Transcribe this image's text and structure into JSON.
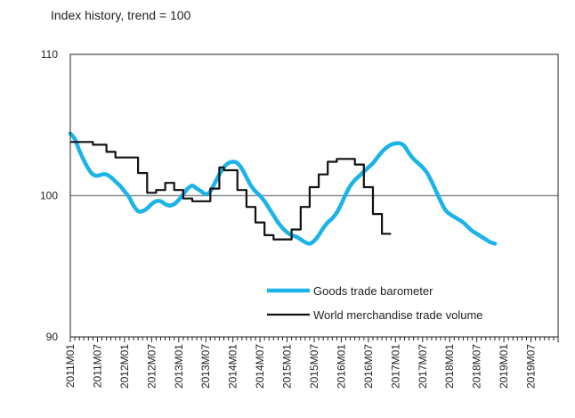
{
  "chart_data": {
    "type": "line",
    "title": "Index history, trend = 100",
    "xlabel": "",
    "ylabel": "",
    "ylim": [
      90,
      110
    ],
    "yticks": [
      90,
      100,
      110
    ],
    "reference_line": 100,
    "grid": false,
    "legend_position": "bottom-right",
    "x_start": "2011M01",
    "x_end": "2019M12",
    "xtick_labels": [
      "2011M01",
      "2011M07",
      "2012M01",
      "2012M07",
      "2013M01",
      "2013M07",
      "2014M01",
      "2014M07",
      "2015M01",
      "2015M07",
      "2016M01",
      "2016M07",
      "2017M01",
      "2017M07",
      "2018M01",
      "2018M07",
      "2019M01",
      "2019M07"
    ],
    "series": [
      {
        "name": "Goods trade barometer",
        "color": "#1bb3e8",
        "style": "smooth",
        "points": [
          [
            "2011M01",
            104.4
          ],
          [
            "2011M02",
            104.0
          ],
          [
            "2011M03",
            103.2
          ],
          [
            "2011M04",
            102.5
          ],
          [
            "2011M05",
            101.9
          ],
          [
            "2011M06",
            101.5
          ],
          [
            "2011M07",
            101.4
          ],
          [
            "2011M08",
            101.5
          ],
          [
            "2011M09",
            101.5
          ],
          [
            "2011M10",
            101.3
          ],
          [
            "2011M11",
            101.0
          ],
          [
            "2011M12",
            100.7
          ],
          [
            "2012M01",
            100.3
          ],
          [
            "2012M02",
            99.9
          ],
          [
            "2012M03",
            99.3
          ],
          [
            "2012M04",
            98.9
          ],
          [
            "2012M05",
            98.9
          ],
          [
            "2012M06",
            99.1
          ],
          [
            "2012M07",
            99.4
          ],
          [
            "2012M08",
            99.6
          ],
          [
            "2012M09",
            99.6
          ],
          [
            "2012M10",
            99.4
          ],
          [
            "2012M11",
            99.3
          ],
          [
            "2012M12",
            99.4
          ],
          [
            "2013M01",
            99.7
          ],
          [
            "2013M02",
            100.1
          ],
          [
            "2013M03",
            100.5
          ],
          [
            "2013M04",
            100.7
          ],
          [
            "2013M05",
            100.5
          ],
          [
            "2013M06",
            100.3
          ],
          [
            "2013M07",
            100.1
          ],
          [
            "2013M08",
            100.3
          ],
          [
            "2013M09",
            100.9
          ],
          [
            "2013M10",
            101.5
          ],
          [
            "2013M11",
            102.0
          ],
          [
            "2013M12",
            102.3
          ],
          [
            "2014M01",
            102.4
          ],
          [
            "2014M02",
            102.3
          ],
          [
            "2014M03",
            101.9
          ],
          [
            "2014M04",
            101.3
          ],
          [
            "2014M05",
            100.7
          ],
          [
            "2014M06",
            100.3
          ],
          [
            "2014M07",
            100.0
          ],
          [
            "2014M08",
            99.6
          ],
          [
            "2014M09",
            99.1
          ],
          [
            "2014M10",
            98.6
          ],
          [
            "2014M11",
            98.1
          ],
          [
            "2014M12",
            97.7
          ],
          [
            "2015M01",
            97.4
          ],
          [
            "2015M02",
            97.2
          ],
          [
            "2015M03",
            97.1
          ],
          [
            "2015M04",
            96.9
          ],
          [
            "2015M05",
            96.7
          ],
          [
            "2015M06",
            96.6
          ],
          [
            "2015M07",
            96.8
          ],
          [
            "2015M08",
            97.2
          ],
          [
            "2015M09",
            97.7
          ],
          [
            "2015M10",
            98.1
          ],
          [
            "2015M11",
            98.4
          ],
          [
            "2015M12",
            98.8
          ],
          [
            "2016M01",
            99.4
          ],
          [
            "2016M02",
            100.1
          ],
          [
            "2016M03",
            100.7
          ],
          [
            "2016M04",
            101.1
          ],
          [
            "2016M05",
            101.4
          ],
          [
            "2016M06",
            101.7
          ],
          [
            "2016M07",
            102.0
          ],
          [
            "2016M08",
            102.3
          ],
          [
            "2016M09",
            102.7
          ],
          [
            "2016M10",
            103.1
          ],
          [
            "2016M11",
            103.4
          ],
          [
            "2016M12",
            103.6
          ],
          [
            "2017M01",
            103.7
          ],
          [
            "2017M02",
            103.7
          ],
          [
            "2017M03",
            103.5
          ],
          [
            "2017M04",
            103.0
          ],
          [
            "2017M05",
            102.6
          ],
          [
            "2017M06",
            102.3
          ],
          [
            "2017M07",
            102.0
          ],
          [
            "2017M08",
            101.6
          ],
          [
            "2017M09",
            101.0
          ],
          [
            "2017M10",
            100.3
          ],
          [
            "2017M11",
            99.6
          ],
          [
            "2017M12",
            99.0
          ],
          [
            "2018M01",
            98.7
          ],
          [
            "2018M02",
            98.5
          ],
          [
            "2018M03",
            98.3
          ],
          [
            "2018M04",
            98.1
          ],
          [
            "2018M05",
            97.8
          ],
          [
            "2018M06",
            97.5
          ],
          [
            "2018M07",
            97.3
          ],
          [
            "2018M08",
            97.1
          ],
          [
            "2018M09",
            96.9
          ],
          [
            "2018M10",
            96.7
          ],
          [
            "2018M11",
            96.6
          ]
        ]
      },
      {
        "name": "World merchandise trade volume",
        "color": "#111111",
        "style": "step",
        "points": [
          [
            "2011M01",
            103.8
          ],
          [
            "2011M02",
            103.8
          ],
          [
            "2011M03",
            103.8
          ],
          [
            "2011M04",
            103.8
          ],
          [
            "2011M05",
            103.8
          ],
          [
            "2011M06",
            103.6
          ],
          [
            "2011M07",
            103.6
          ],
          [
            "2011M08",
            103.6
          ],
          [
            "2011M09",
            103.1
          ],
          [
            "2011M10",
            103.1
          ],
          [
            "2011M11",
            102.7
          ],
          [
            "2011M12",
            102.7
          ],
          [
            "2012M01",
            102.7
          ],
          [
            "2012M02",
            102.7
          ],
          [
            "2012M03",
            102.7
          ],
          [
            "2012M04",
            101.6
          ],
          [
            "2012M05",
            101.6
          ],
          [
            "2012M06",
            100.2
          ],
          [
            "2012M07",
            100.2
          ],
          [
            "2012M08",
            100.4
          ],
          [
            "2012M09",
            100.4
          ],
          [
            "2012M10",
            100.9
          ],
          [
            "2012M11",
            100.9
          ],
          [
            "2012M12",
            100.4
          ],
          [
            "2013M01",
            100.4
          ],
          [
            "2013M02",
            99.8
          ],
          [
            "2013M03",
            99.8
          ],
          [
            "2013M04",
            99.6
          ],
          [
            "2013M05",
            99.6
          ],
          [
            "2013M06",
            99.6
          ],
          [
            "2013M07",
            99.6
          ],
          [
            "2013M08",
            100.5
          ],
          [
            "2013M09",
            100.5
          ],
          [
            "2013M10",
            102.0
          ],
          [
            "2013M11",
            101.8
          ],
          [
            "2013M12",
            101.8
          ],
          [
            "2014M01",
            101.8
          ],
          [
            "2014M02",
            100.4
          ],
          [
            "2014M03",
            100.4
          ],
          [
            "2014M04",
            99.2
          ],
          [
            "2014M05",
            99.2
          ],
          [
            "2014M06",
            98.1
          ],
          [
            "2014M07",
            98.1
          ],
          [
            "2014M08",
            97.2
          ],
          [
            "2014M09",
            97.2
          ],
          [
            "2014M10",
            96.9
          ],
          [
            "2014M11",
            96.9
          ],
          [
            "2014M12",
            96.9
          ],
          [
            "2015M01",
            96.9
          ],
          [
            "2015M02",
            97.6
          ],
          [
            "2015M03",
            97.6
          ],
          [
            "2015M04",
            99.2
          ],
          [
            "2015M05",
            99.2
          ],
          [
            "2015M06",
            100.6
          ],
          [
            "2015M07",
            100.6
          ],
          [
            "2015M08",
            101.5
          ],
          [
            "2015M09",
            101.5
          ],
          [
            "2015M10",
            102.4
          ],
          [
            "2015M11",
            102.4
          ],
          [
            "2015M12",
            102.6
          ],
          [
            "2016M01",
            102.6
          ],
          [
            "2016M02",
            102.6
          ],
          [
            "2016M03",
            102.6
          ],
          [
            "2016M04",
            102.2
          ],
          [
            "2016M05",
            102.2
          ],
          [
            "2016M06",
            100.6
          ],
          [
            "2016M07",
            100.6
          ],
          [
            "2016M08",
            98.7
          ],
          [
            "2016M09",
            98.7
          ],
          [
            "2016M10",
            97.3
          ],
          [
            "2016M11",
            97.3
          ]
        ]
      }
    ]
  }
}
